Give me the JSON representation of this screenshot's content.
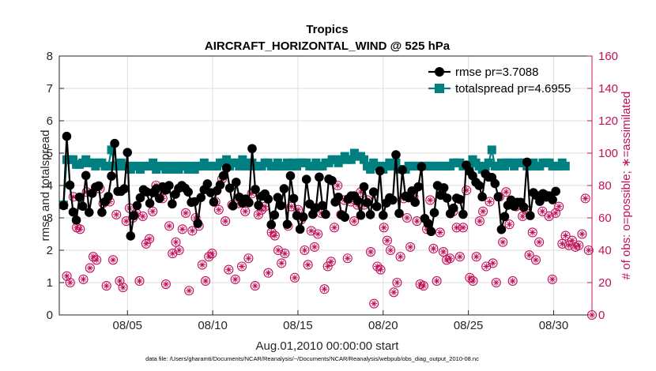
{
  "chart_data": {
    "type": "line",
    "title": "Tropics",
    "subtitle": "AIRCRAFT_HORIZONTAL_WIND @ 525 hPa",
    "xlabel": "Aug.01,2010 00:00:00 start",
    "ylabel": "rmse and totalspread",
    "y2label": "# of obs: o=possible; ∗=assimilated",
    "xlim": [
      0,
      31.25
    ],
    "ylim": [
      0,
      8
    ],
    "y2lim": [
      0,
      160
    ],
    "xticks": [
      4,
      9,
      14,
      19,
      24,
      29
    ],
    "xtick_labels": [
      "08/05",
      "08/10",
      "08/15",
      "08/20",
      "08/25",
      "08/30"
    ],
    "yticks": [
      0,
      1,
      2,
      3,
      4,
      5,
      6,
      7,
      8
    ],
    "ytick_labels": [
      "0",
      "1",
      "2",
      "3",
      "4",
      "5",
      "6",
      "7",
      "8"
    ],
    "y2ticks": [
      0,
      20,
      40,
      60,
      80,
      100,
      120,
      140,
      160
    ],
    "y2tick_labels": [
      "0",
      "20",
      "40",
      "60",
      "80",
      "100",
      "120",
      "140",
      "160"
    ],
    "legend_position": "top-right",
    "colors": {
      "rmse": "#000000",
      "spread": "#008080",
      "obs": "#c0105a"
    },
    "series": [
      {
        "name": "rmse pr=3.7088",
        "axis": "left",
        "values": [
          3.38,
          5.52,
          4.01,
          3.18,
          2.93,
          3.64,
          3.36,
          4.31,
          3.17,
          3.76,
          3.95,
          3.99,
          3.17,
          3.5,
          3.66,
          4.29,
          5.3,
          3.82,
          3.82,
          3.9,
          5.02,
          2.44,
          3.07,
          3.38,
          3.62,
          3.87,
          3.8,
          3.45,
          3.78,
          3.9,
          3.6,
          3.96,
          3.86,
          4.0,
          3.43,
          3.73,
          3.91,
          4.0,
          3.92,
          3.8,
          3.48,
          3.5,
          2.83,
          3.63,
          3.87,
          4.05,
          3.78,
          3.49,
          3.84,
          4.02,
          4.3,
          4.54,
          3.92,
          3.37,
          4.1,
          3.64,
          3.46,
          3.58,
          3.47,
          5.14,
          3.88,
          3.39,
          3.67,
          3.74,
          3.58,
          2.79,
          3.09,
          3.63,
          3.38,
          3.9,
          2.8,
          4.3,
          3.6,
          3.07,
          2.65,
          3.03,
          4.19,
          3.43,
          3.11,
          3.31,
          4.26,
          3.38,
          3.11,
          4.2,
          4.15,
          3.49,
          3.64,
          3.09,
          3.02,
          3.58,
          3.68,
          3.68,
          3.53,
          3.08,
          3.96,
          3.47,
          3.1,
          3.8,
          3.35,
          4.45,
          3.08,
          3.46,
          3.62,
          3.55,
          4.95,
          3.14,
          4.48,
          3.67,
          3.62,
          3.83,
          3.48,
          3.96,
          4.58,
          2.98,
          2.83,
          2.58,
          3.16,
          4.0,
          3.7,
          3.93,
          3.61,
          3.13,
          3.3,
          3.61,
          3.57,
          3.11,
          4.63,
          4.44,
          4.3,
          4.1,
          4.0,
          3.65,
          4.36,
          4.26,
          4.25,
          4.06,
          3.65,
          2.64,
          3.04,
          3.39,
          3.55,
          3.36,
          3.48,
          3.48,
          3.33,
          4.72,
          3.07,
          3.78,
          3.69,
          3.51,
          3.75,
          3.64,
          3.68,
          3.56,
          3.82
        ]
      },
      {
        "name": "totalspread pr=4.6955",
        "axis": "left",
        "values": [
          3.4,
          4.8,
          4.8,
          4.8,
          4.65,
          4.65,
          4.7,
          4.8,
          4.7,
          4.7,
          4.6,
          4.7,
          4.7,
          4.6,
          4.6,
          5.1,
          4.6,
          4.6,
          4.7,
          4.6,
          4.6,
          4.5,
          4.6,
          4.6,
          4.5,
          4.6,
          4.6,
          4.6,
          4.7,
          4.5,
          4.6,
          4.6,
          4.5,
          4.6,
          4.5,
          4.6,
          4.5,
          4.6,
          4.6,
          4.5,
          4.6,
          4.5,
          4.6,
          4.6,
          4.7,
          4.6,
          4.6,
          4.6,
          4.6,
          4.7,
          4.7,
          4.8,
          4.6,
          4.7,
          4.7,
          4.6,
          4.8,
          4.6,
          4.7,
          4.7,
          4.6,
          4.6,
          4.6,
          4.7,
          4.7,
          4.6,
          4.6,
          4.7,
          4.6,
          4.6,
          4.7,
          4.6,
          4.7,
          4.6,
          4.7,
          4.7,
          4.7,
          4.6,
          4.6,
          4.7,
          4.6,
          4.6,
          4.7,
          4.7,
          4.8,
          4.8,
          4.7,
          4.8,
          4.9,
          4.8,
          4.8,
          5.0,
          4.9,
          4.9,
          4.8,
          4.6,
          4.5,
          4.7,
          4.6,
          4.6,
          4.5,
          4.6,
          4.7,
          4.6,
          4.7,
          4.5,
          4.5,
          4.5,
          4.6,
          4.6,
          4.6,
          4.6,
          4.6,
          4.6,
          4.6,
          4.6,
          4.6,
          4.6,
          4.6,
          4.6,
          4.6,
          4.6,
          4.7,
          4.7,
          4.7,
          4.6,
          4.6,
          4.6,
          4.8,
          4.7,
          4.6,
          4.5,
          4.6,
          4.7,
          5.1,
          4.6,
          4.6,
          4.7,
          4.6,
          4.7,
          4.7,
          4.6,
          4.7,
          4.7,
          4.7,
          4.6,
          4.6,
          4.7,
          4.6,
          4.6,
          4.7,
          4.7,
          4.7,
          4.6,
          4.6,
          4.6,
          4.7,
          4.6
        ]
      },
      {
        "name": "# of obs possible",
        "axis": "right",
        "values": [
          68,
          24,
          20,
          73,
          54,
          53,
          22,
          76,
          29,
          36,
          34,
          78,
          69,
          18,
          70,
          34,
          62,
          21,
          17,
          58,
          66,
          60,
          63,
          21,
          61,
          44,
          47,
          64,
          80,
          73,
          72,
          19,
          55,
          38,
          45,
          40,
          53,
          63,
          15,
          52,
          60,
          55,
          31,
          21,
          36,
          38,
          70,
          65,
          84,
          58,
          28,
          68,
          22,
          69,
          30,
          64,
          35,
          75,
          18,
          62,
          65,
          67,
          26,
          51,
          49,
          40,
          32,
          38,
          55,
          67,
          23,
          65,
          59,
          40,
          31,
          52,
          42,
          50,
          63,
          16,
          30,
          33,
          54,
          80,
          62,
          71,
          35,
          70,
          58,
          68,
          76,
          68,
          71,
          39,
          7,
          30,
          28,
          54,
          46,
          40,
          14,
          20,
          36,
          72,
          60,
          42,
          73,
          58,
          19,
          18,
          53,
          71,
          41,
          21,
          51,
          39,
          34,
          35,
          64,
          54,
          36,
          54,
          77,
          23,
          21,
          36,
          58,
          64,
          30,
          70,
          32,
          20,
          73,
          45,
          76,
          56,
          21,
          67,
          68,
          61,
          65,
          37,
          51,
          34,
          45,
          64,
          74,
          61,
          22,
          63,
          67,
          44,
          49,
          43,
          46,
          42,
          43,
          50,
          72,
          40,
          0
        ]
      },
      {
        "name": "# of obs assimilated",
        "axis": "right",
        "values": [
          68,
          24,
          20,
          73,
          54,
          53,
          22,
          76,
          29,
          36,
          34,
          78,
          69,
          18,
          70,
          34,
          62,
          21,
          17,
          58,
          66,
          60,
          63,
          21,
          61,
          44,
          47,
          64,
          80,
          73,
          72,
          19,
          55,
          38,
          45,
          40,
          53,
          63,
          15,
          52,
          60,
          55,
          31,
          21,
          36,
          38,
          70,
          65,
          84,
          58,
          28,
          68,
          22,
          69,
          30,
          64,
          35,
          75,
          18,
          62,
          65,
          67,
          26,
          51,
          49,
          40,
          32,
          38,
          55,
          67,
          23,
          65,
          59,
          40,
          31,
          52,
          42,
          50,
          63,
          16,
          30,
          33,
          54,
          80,
          62,
          71,
          35,
          70,
          58,
          68,
          76,
          68,
          71,
          39,
          7,
          30,
          28,
          54,
          46,
          40,
          14,
          20,
          36,
          72,
          60,
          42,
          73,
          58,
          19,
          18,
          53,
          71,
          41,
          21,
          51,
          39,
          34,
          35,
          64,
          54,
          36,
          54,
          77,
          23,
          21,
          36,
          58,
          64,
          30,
          70,
          32,
          20,
          73,
          45,
          76,
          56,
          21,
          67,
          68,
          61,
          65,
          37,
          51,
          34,
          45,
          64,
          74,
          61,
          22,
          63,
          67,
          44,
          49,
          43,
          46,
          42,
          43,
          50,
          72,
          40,
          0
        ]
      }
    ]
  },
  "legend": {
    "rmse_label": "rmse pr=3.7088",
    "spread_label": "totalspread pr=4.6955"
  },
  "footer": "data file: /Users/gharamti/Documents/NCAR/Reanalysis/~/Documents/NCAR/Reanalysis/webpub/obs_diag_output_2010-08.nc"
}
